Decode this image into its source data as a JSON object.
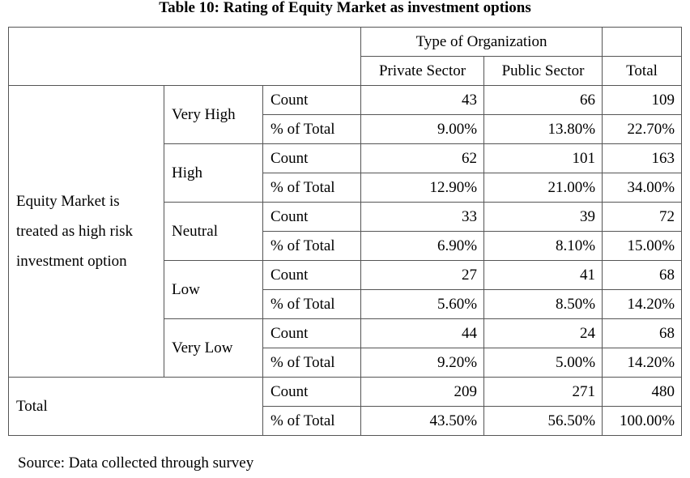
{
  "title": "Table 10: Rating of Equity Market as investment options",
  "table": {
    "group_header": "Type of Organization",
    "columns": [
      "Private Sector",
      "Public Sector",
      "Total"
    ],
    "row_label": "Equity Market is treated as high risk investment option",
    "groups": [
      {
        "label": "Very High",
        "rows": [
          {
            "measure": "Count",
            "values": [
              "43",
              "66",
              "109"
            ]
          },
          {
            "measure": "% of Total",
            "values": [
              "9.00%",
              "13.80%",
              "22.70%"
            ]
          }
        ]
      },
      {
        "label": "High",
        "rows": [
          {
            "measure": "Count",
            "values": [
              "62",
              "101",
              "163"
            ]
          },
          {
            "measure": "% of Total",
            "values": [
              "12.90%",
              "21.00%",
              "34.00%"
            ]
          }
        ]
      },
      {
        "label": "Neutral",
        "rows": [
          {
            "measure": "Count",
            "values": [
              "33",
              "39",
              "72"
            ]
          },
          {
            "measure": "% of Total",
            "values": [
              "6.90%",
              "8.10%",
              "15.00%"
            ]
          }
        ]
      },
      {
        "label": "Low",
        "rows": [
          {
            "measure": "Count",
            "values": [
              "27",
              "41",
              "68"
            ]
          },
          {
            "measure": "% of Total",
            "values": [
              "5.60%",
              "8.50%",
              "14.20%"
            ]
          }
        ]
      },
      {
        "label": "Very Low",
        "rows": [
          {
            "measure": "Count",
            "values": [
              "44",
              "24",
              "68"
            ]
          },
          {
            "measure": "% of Total",
            "values": [
              "9.20%",
              "5.00%",
              "14.20%"
            ]
          }
        ]
      }
    ],
    "total": {
      "label": "Total",
      "rows": [
        {
          "measure": "Count",
          "values": [
            "209",
            "271",
            "480"
          ]
        },
        {
          "measure": "% of Total",
          "values": [
            "43.50%",
            "56.50%",
            "100.00%"
          ]
        }
      ]
    }
  },
  "source": "Source: Data collected through survey"
}
